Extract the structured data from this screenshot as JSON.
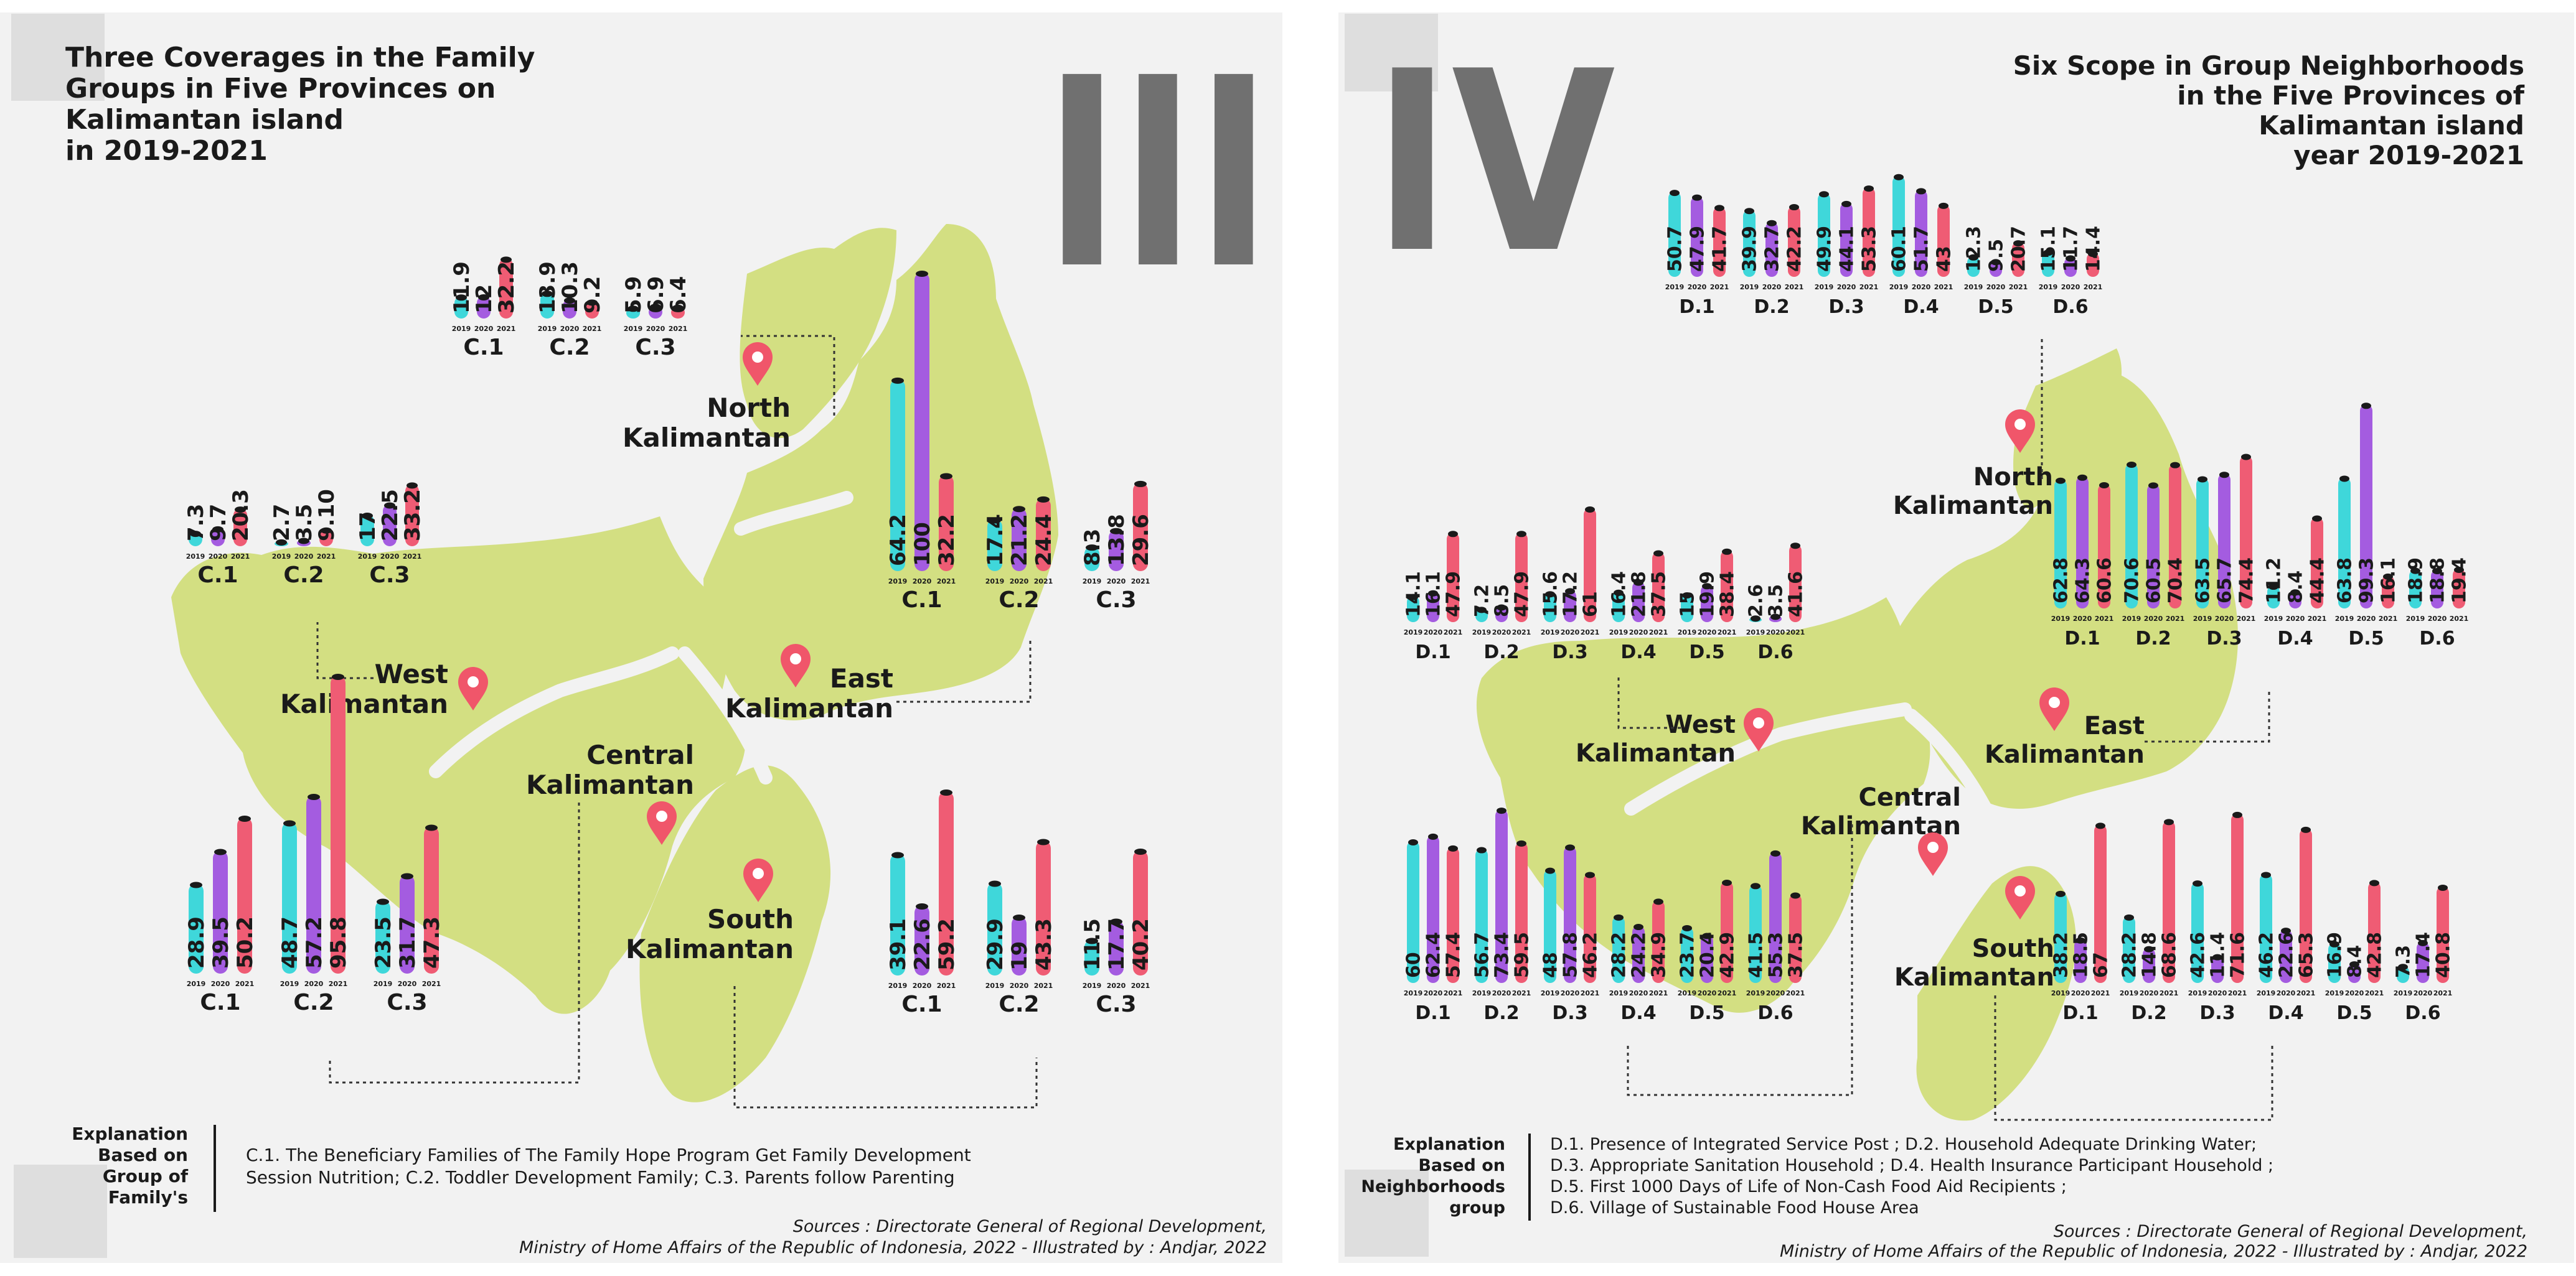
{
  "colors": {
    "panel_bg": "#f2f2f2",
    "land": "#d3df82",
    "river": "#f2f2f2",
    "bar_2019": "#3fd7da",
    "bar_2020": "#a45ce0",
    "bar_2021": "#ef5c74",
    "roman": "#707070",
    "pin": "#f0566a",
    "text": "#1a1a1a"
  },
  "left": {
    "roman": "III",
    "title": [
      "Three Coverages in the Family",
      "Groups in Five Provinces on",
      "Kalimantan island",
      "in 2019-2021"
    ],
    "provinces": {
      "north": [
        "North",
        "Kalimantan"
      ],
      "west": [
        "West",
        "Kalimantan"
      ],
      "central": [
        "Central",
        "Kalimantan"
      ],
      "east": [
        "East",
        "Kalimantan"
      ],
      "south": [
        "South",
        "Kalimantan"
      ]
    },
    "explanation_label": [
      "Explanation",
      "Based on",
      "Group of",
      "Family's"
    ],
    "explanation_text": [
      "C.1. The Beneficiary Families of The Family Hope Program Get Family Development",
      "Session Nutrition; C.2. Toddler Development Family; C.3. Parents follow Parenting"
    ],
    "sources": [
      "Sources : Directorate General of Regional Development,",
      "Ministry of Home Affairs of the Republic of Indonesia, 2022 - Illustrated by : Andjar, 2022"
    ]
  },
  "right": {
    "roman": "IV",
    "title": [
      "Six Scope in Group Neighborhoods",
      "in the Five Provinces of",
      "Kalimantan island",
      "year 2019-2021"
    ],
    "provinces": {
      "north": [
        "North",
        "Kalimantan"
      ],
      "west": [
        "West",
        "Kalimantan"
      ],
      "central": [
        "Central",
        "Kalimantan"
      ],
      "east": [
        "East",
        "Kalimantan"
      ],
      "south": [
        "South",
        "Kalimantan"
      ]
    },
    "explanation_label": [
      "Explanation",
      "Based on",
      "Neighborhoods",
      "group"
    ],
    "explanation_text": [
      "D.1. Presence of Integrated Service Post ; D.2. Household Adequate Drinking Water;",
      "D.3. Appropriate Sanitation Household ; D.4. Health Insurance Participant Household ;",
      "D.5. First 1000 Days of Life of Non-Cash Food Aid Recipients ;",
      "D.6. Village of Sustainable Food House Area"
    ],
    "sources": [
      "Sources : Directorate General of Regional Development,",
      "Ministry of Home Affairs of the Republic of Indonesia, 2022 - Illustrated by : Andjar, 2022"
    ]
  },
  "chart_data": [
    {
      "type": "bar",
      "panel": "III",
      "province": "North Kalimantan",
      "ylim": [
        0,
        100
      ],
      "groups": [
        {
          "label": "C.1",
          "years": [
            "2019",
            "2020",
            "2021"
          ],
          "values": [
            11.9,
            12,
            32.2
          ],
          "labels": [
            "11.9",
            "12",
            "32.2"
          ]
        },
        {
          "label": "C.2",
          "years": [
            "2019",
            "2020",
            "2021"
          ],
          "values": [
            13.9,
            10.3,
            9.2
          ],
          "labels": [
            "13.9",
            "10.3",
            "9.2"
          ]
        },
        {
          "label": "C.3",
          "years": [
            "2019",
            "2020",
            "2021"
          ],
          "values": [
            5.9,
            6.9,
            6.4
          ],
          "labels": [
            "5.9",
            "6.9",
            "6.4"
          ]
        }
      ]
    },
    {
      "type": "bar",
      "panel": "III",
      "province": "West Kalimantan",
      "ylim": [
        0,
        100
      ],
      "groups": [
        {
          "label": "C.1",
          "years": [
            "2019",
            "2020",
            "2021"
          ],
          "values": [
            7.3,
            9.7,
            20.3
          ],
          "labels": [
            "7.3",
            "9.7",
            "20.3"
          ]
        },
        {
          "label": "C.2",
          "years": [
            "2019",
            "2020",
            "2021"
          ],
          "values": [
            2.7,
            3.5,
            9.1
          ],
          "labels": [
            "2.7",
            "3.5",
            "9.10"
          ]
        },
        {
          "label": "C.3",
          "years": [
            "2019",
            "2020",
            "2021"
          ],
          "values": [
            17,
            22.5,
            33.2
          ],
          "labels": [
            "17",
            "22.5",
            "33.2"
          ]
        }
      ]
    },
    {
      "type": "bar",
      "panel": "III",
      "province": "East Kalimantan",
      "ylim": [
        0,
        100
      ],
      "groups": [
        {
          "label": "C.1",
          "years": [
            "2019",
            "2020",
            "2021"
          ],
          "values": [
            64.2,
            100,
            32.2
          ],
          "labels": [
            "64.2",
            "100",
            "32.2"
          ]
        },
        {
          "label": "C.2",
          "years": [
            "2019",
            "2020",
            "2021"
          ],
          "values": [
            17.4,
            21.2,
            24.4
          ],
          "labels": [
            "17.4",
            "21.2",
            "24.4"
          ]
        },
        {
          "label": "C.3",
          "years": [
            "2019",
            "2020",
            "2021"
          ],
          "values": [
            8.3,
            13.8,
            29.6
          ],
          "labels": [
            "8.3",
            "13.8",
            "29.6"
          ]
        }
      ]
    },
    {
      "type": "bar",
      "panel": "III",
      "province": "Central Kalimantan",
      "ylim": [
        0,
        100
      ],
      "groups": [
        {
          "label": "C.1",
          "years": [
            "2019",
            "2020",
            "2021"
          ],
          "values": [
            28.9,
            39.5,
            50.2
          ],
          "labels": [
            "28.9",
            "39.5",
            "50.2"
          ]
        },
        {
          "label": "C.2",
          "years": [
            "2019",
            "2020",
            "2021"
          ],
          "values": [
            48.7,
            57.2,
            95.8
          ],
          "labels": [
            "48.7",
            "57.2",
            "95.8"
          ]
        },
        {
          "label": "C.3",
          "years": [
            "2019",
            "2020",
            "2021"
          ],
          "values": [
            23.5,
            31.7,
            47.3
          ],
          "labels": [
            "23.5",
            "31.7",
            "47.3"
          ]
        }
      ]
    },
    {
      "type": "bar",
      "panel": "III",
      "province": "South Kalimantan",
      "ylim": [
        0,
        100
      ],
      "groups": [
        {
          "label": "C.1",
          "years": [
            "2019",
            "2020",
            "2021"
          ],
          "values": [
            39.1,
            22.6,
            59.2
          ],
          "labels": [
            "39.1",
            "22.6",
            "59.2"
          ]
        },
        {
          "label": "C.2",
          "years": [
            "2019",
            "2020",
            "2021"
          ],
          "values": [
            29.9,
            19,
            43.3
          ],
          "labels": [
            "29.9",
            "19",
            "43.3"
          ]
        },
        {
          "label": "C.3",
          "years": [
            "2019",
            "2020",
            "2021"
          ],
          "values": [
            11.5,
            17.7,
            40.2
          ],
          "labels": [
            "11.5",
            "17.7",
            "40.2"
          ]
        }
      ]
    },
    {
      "type": "bar",
      "panel": "IV",
      "province": "North Kalimantan",
      "ylim": [
        0,
        100
      ],
      "groups": [
        {
          "label": "D.1",
          "years": [
            "2019",
            "2020",
            "2021"
          ],
          "values": [
            50.7,
            47.9,
            41.7
          ],
          "labels": [
            "50.7",
            "47.9",
            "41.7"
          ]
        },
        {
          "label": "D.2",
          "years": [
            "2019",
            "2020",
            "2021"
          ],
          "values": [
            39.9,
            32.7,
            42.2
          ],
          "labels": [
            "39.9",
            "32.7",
            "42.2"
          ]
        },
        {
          "label": "D.3",
          "years": [
            "2019",
            "2020",
            "2021"
          ],
          "values": [
            49.9,
            44.1,
            53.3
          ],
          "labels": [
            "49.9",
            "44.1",
            "53.3"
          ]
        },
        {
          "label": "D.4",
          "years": [
            "2019",
            "2020",
            "2021"
          ],
          "values": [
            60.1,
            51.7,
            43
          ],
          "labels": [
            "60.1",
            "51.7",
            "43"
          ]
        },
        {
          "label": "D.5",
          "years": [
            "2019",
            "2020",
            "2021"
          ],
          "values": [
            12.3,
            9.5,
            20.7
          ],
          "labels": [
            "12.3",
            "9.5",
            "20.7"
          ]
        },
        {
          "label": "D.6",
          "years": [
            "2019",
            "2020",
            "2021"
          ],
          "values": [
            15.1,
            11.7,
            14.4
          ],
          "labels": [
            "15.1",
            "11.7",
            "14.4"
          ]
        }
      ]
    },
    {
      "type": "bar",
      "panel": "IV",
      "province": "West Kalimantan",
      "ylim": [
        0,
        100
      ],
      "groups": [
        {
          "label": "D.1",
          "years": [
            "2019",
            "2020",
            "2021"
          ],
          "values": [
            14.1,
            16.1,
            47.9
          ],
          "labels": [
            "14.1",
            "16.1",
            "47.9"
          ]
        },
        {
          "label": "D.2",
          "years": [
            "2019",
            "2020",
            "2021"
          ],
          "values": [
            7.2,
            8.5,
            47.9
          ],
          "labels": [
            "7.2",
            "8.5",
            "47.9"
          ]
        },
        {
          "label": "D.3",
          "years": [
            "2019",
            "2020",
            "2021"
          ],
          "values": [
            15.6,
            17.2,
            61
          ],
          "labels": [
            "15.6",
            "17.2",
            "61"
          ]
        },
        {
          "label": "D.4",
          "years": [
            "2019",
            "2020",
            "2021"
          ],
          "values": [
            16.4,
            21.8,
            37.5
          ],
          "labels": [
            "16.4",
            "21.8",
            "37.5"
          ]
        },
        {
          "label": "D.5",
          "years": [
            "2019",
            "2020",
            "2021"
          ],
          "values": [
            15,
            19.9,
            38.4
          ],
          "labels": [
            "15",
            "19.9",
            "38.4"
          ]
        },
        {
          "label": "D.6",
          "years": [
            "2019",
            "2020",
            "2021"
          ],
          "values": [
            2.6,
            3.5,
            41.6
          ],
          "labels": [
            "2.6",
            "3.5",
            "41.6"
          ]
        }
      ]
    },
    {
      "type": "bar",
      "panel": "IV",
      "province": "East Kalimantan",
      "ylim": [
        0,
        100
      ],
      "groups": [
        {
          "label": "D.1",
          "years": [
            "2019",
            "2020",
            "2021"
          ],
          "values": [
            62.8,
            64.3,
            60.6
          ],
          "labels": [
            "62.8",
            "64.3",
            "60.6"
          ]
        },
        {
          "label": "D.2",
          "years": [
            "2019",
            "2020",
            "2021"
          ],
          "values": [
            70.6,
            60.5,
            70.4
          ],
          "labels": [
            "70.6",
            "60.5",
            "70.4"
          ]
        },
        {
          "label": "D.3",
          "years": [
            "2019",
            "2020",
            "2021"
          ],
          "values": [
            63.5,
            65.7,
            74.4
          ],
          "labels": [
            "63.5",
            "65.7",
            "74.4"
          ]
        },
        {
          "label": "D.4",
          "years": [
            "2019",
            "2020",
            "2021"
          ],
          "values": [
            11.2,
            8.4,
            44.4
          ],
          "labels": [
            "11.2",
            "8.4",
            "44.4"
          ]
        },
        {
          "label": "D.5",
          "years": [
            "2019",
            "2020",
            "2021"
          ],
          "values": [
            63.8,
            99.3,
            16.1
          ],
          "labels": [
            "63.8",
            "99.3",
            "16.1"
          ]
        },
        {
          "label": "D.6",
          "years": [
            "2019",
            "2020",
            "2021"
          ],
          "values": [
            18.9,
            18.8,
            19.4
          ],
          "labels": [
            "18.9",
            "18.8",
            "19.4"
          ]
        }
      ]
    },
    {
      "type": "bar",
      "panel": "IV",
      "province": "Central Kalimantan",
      "ylim": [
        0,
        100
      ],
      "groups": [
        {
          "label": "D.1",
          "years": [
            "2019",
            "2020",
            "2021"
          ],
          "values": [
            60,
            62.4,
            57.4
          ],
          "labels": [
            "60",
            "62.4",
            "57.4"
          ]
        },
        {
          "label": "D.2",
          "years": [
            "2019",
            "2020",
            "2021"
          ],
          "values": [
            56.7,
            73.4,
            59.5
          ],
          "labels": [
            "56.7",
            "73.4",
            "59.5"
          ]
        },
        {
          "label": "D.3",
          "years": [
            "2019",
            "2020",
            "2021"
          ],
          "values": [
            48,
            57.8,
            46.2
          ],
          "labels": [
            "48",
            "57.8",
            "46.2"
          ]
        },
        {
          "label": "D.4",
          "years": [
            "2019",
            "2020",
            "2021"
          ],
          "values": [
            28.2,
            24.2,
            34.9
          ],
          "labels": [
            "28.2",
            "24.2",
            "34.9"
          ]
        },
        {
          "label": "D.5",
          "years": [
            "2019",
            "2020",
            "2021"
          ],
          "values": [
            23.7,
            20.4,
            42.9
          ],
          "labels": [
            "23.7",
            "20.4",
            "42.9"
          ]
        },
        {
          "label": "D.6",
          "years": [
            "2019",
            "2020",
            "2021"
          ],
          "values": [
            41.5,
            55.3,
            37.5
          ],
          "labels": [
            "41.5",
            "55.3",
            "37.5"
          ]
        }
      ]
    },
    {
      "type": "bar",
      "panel": "IV",
      "province": "South Kalimantan",
      "ylim": [
        0,
        100
      ],
      "groups": [
        {
          "label": "D.1",
          "years": [
            "2019",
            "2020",
            "2021"
          ],
          "values": [
            38.2,
            18.5,
            67
          ],
          "labels": [
            "38.2",
            "18.5",
            "67"
          ]
        },
        {
          "label": "D.2",
          "years": [
            "2019",
            "2020",
            "2021"
          ],
          "values": [
            28.2,
            14.8,
            68.6
          ],
          "labels": [
            "28.2",
            "14.8",
            "68.6"
          ]
        },
        {
          "label": "D.3",
          "years": [
            "2019",
            "2020",
            "2021"
          ],
          "values": [
            42.6,
            11.4,
            71.6
          ],
          "labels": [
            "42.6",
            "11.4",
            "71.6"
          ]
        },
        {
          "label": "D.4",
          "years": [
            "2019",
            "2020",
            "2021"
          ],
          "values": [
            46.2,
            22.6,
            65.3
          ],
          "labels": [
            "46.2",
            "22.6",
            "65.3"
          ]
        },
        {
          "label": "D.5",
          "years": [
            "2019",
            "2020",
            "2021"
          ],
          "values": [
            16.9,
            8.4,
            42.8
          ],
          "labels": [
            "16.9",
            "8.4",
            "42.8"
          ]
        },
        {
          "label": "D.6",
          "years": [
            "2019",
            "2020",
            "2021"
          ],
          "values": [
            7.3,
            17.4,
            40.8
          ],
          "labels": [
            "7.3",
            "17.4",
            "40.8"
          ]
        }
      ]
    }
  ]
}
